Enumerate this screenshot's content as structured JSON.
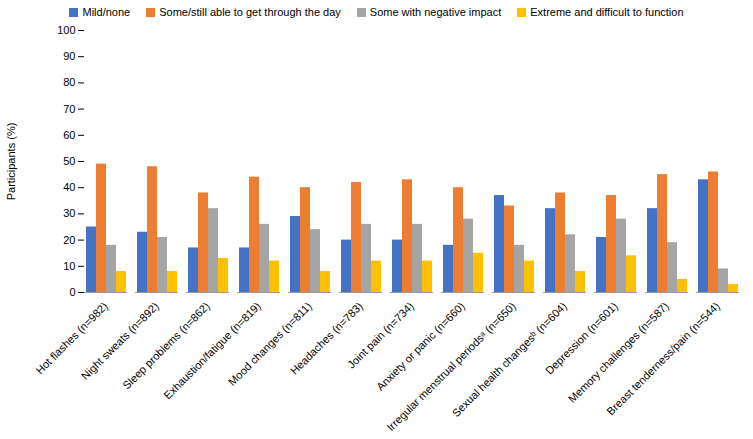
{
  "chart_data": {
    "type": "bar",
    "y_label": "Participants (%)",
    "categories": [
      "Hot flashes (n=982)",
      "Night sweats (n=892)",
      "Sleep problems (n=862)",
      "Exhaustion/fatigue (n=819)",
      "Mood changes (n=811)",
      "Headaches (n=783)",
      "Joint pain (n=734)",
      "Anxiety or panic (n=660)",
      "Irregular menstrual periodsᵃ (n=650)",
      "Sexual health changesᵇ (n=604)",
      "Depression (n=601)",
      "Memory challenges (n=587)",
      "Breast tenderness/pain (n=544)"
    ],
    "series": [
      {
        "name": "Mild/none",
        "color": "#4472C4",
        "values": [
          25,
          23,
          17,
          17,
          29,
          20,
          20,
          18,
          37,
          32,
          21,
          32,
          43
        ]
      },
      {
        "name": "Some/still able to get through the day",
        "color": "#ED7D31",
        "values": [
          49,
          48,
          38,
          44,
          40,
          42,
          43,
          40,
          33,
          38,
          37,
          45,
          46
        ]
      },
      {
        "name": "Some with negative impact",
        "color": "#A5A5A5",
        "values": [
          18,
          21,
          32,
          26,
          24,
          26,
          26,
          28,
          18,
          22,
          28,
          19,
          9
        ]
      },
      {
        "name": "Extreme and difficult to function",
        "color": "#FFC000",
        "values": [
          8,
          8,
          13,
          12,
          8,
          12,
          12,
          15,
          12,
          8,
          14,
          5,
          3
        ]
      }
    ],
    "ylim": [
      0,
      100
    ],
    "yticks": [
      0,
      10,
      20,
      30,
      40,
      50,
      60,
      70,
      80,
      90,
      100
    ],
    "grid": false,
    "legend": "top"
  }
}
